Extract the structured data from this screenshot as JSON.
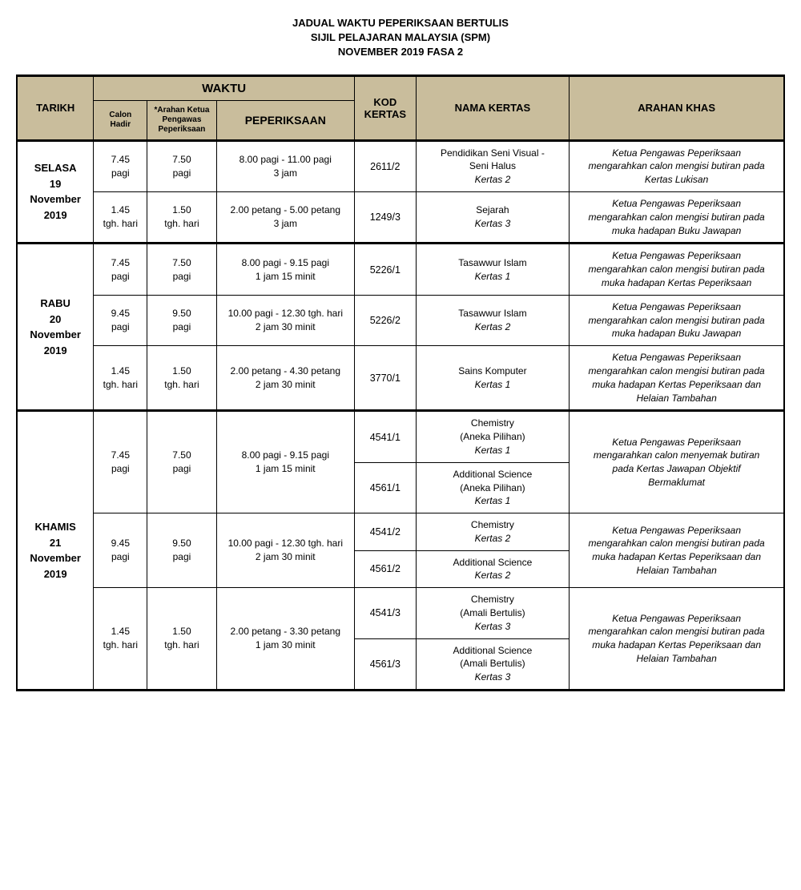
{
  "colors": {
    "header_bg": "#c9bd9c",
    "border": "#000000",
    "bg": "#ffffff"
  },
  "title": {
    "line1": "JADUAL WAKTU PEPERIKSAAN BERTULIS",
    "line2": "SIJIL PELAJARAN MALAYSIA (SPM)",
    "line3": "NOVEMBER 2019 FASA 2"
  },
  "headers": {
    "tarikh": "TARIKH",
    "waktu": "WAKTU",
    "calon_l1": "Calon",
    "calon_l2": "Hadir",
    "arahan_l1": "*Arahan Ketua",
    "arahan_l2": "Pengawas",
    "arahan_l3": "Peperiksaan",
    "peperiksaan": "PEPERIKSAAN",
    "kod": "KOD",
    "kertas": "KERTAS",
    "nama": "NAMA KERTAS",
    "khas": "ARAHAN KHAS"
  },
  "d1": {
    "day": "SELASA",
    "num": "19",
    "month": "November",
    "year": "2019",
    "r1": {
      "calon_t": "7.45",
      "calon_p": "pagi",
      "arah_t": "7.50",
      "arah_p": "pagi",
      "pep_l1": "8.00 pagi - 11.00 pagi",
      "pep_l2": "3 jam",
      "kod": "2611/2",
      "nama_l1": "Pendidikan Seni Visual -",
      "nama_l2": "Seni Halus",
      "nama_k": "Kertas 2",
      "khas_l1": "Ketua Pengawas Peperiksaan",
      "khas_l2": "mengarahkan calon mengisi butiran pada",
      "khas_l3": "Kertas Lukisan"
    },
    "r2": {
      "calon_t": "1.45",
      "calon_p": "tgh. hari",
      "arah_t": "1.50",
      "arah_p": "tgh. hari",
      "pep_l1": "2.00 petang - 5.00 petang",
      "pep_l2": "3 jam",
      "kod": "1249/3",
      "nama_l1": "Sejarah",
      "nama_k": "Kertas 3",
      "khas_l1": "Ketua Pengawas Peperiksaan",
      "khas_l2": "mengarahkan calon mengisi butiran pada",
      "khas_l3": "muka hadapan Buku Jawapan"
    }
  },
  "d2": {
    "day": "RABU",
    "num": "20",
    "month": "November",
    "year": "2019",
    "r1": {
      "calon_t": "7.45",
      "calon_p": "pagi",
      "arah_t": "7.50",
      "arah_p": "pagi",
      "pep_l1": "8.00 pagi - 9.15 pagi",
      "pep_l2": "1 jam 15 minit",
      "kod": "5226/1",
      "nama_l1": "Tasawwur Islam",
      "nama_k": "Kertas 1",
      "khas_l1": "Ketua Pengawas Peperiksaan",
      "khas_l2": "mengarahkan calon mengisi butiran pada",
      "khas_l3": "muka hadapan Kertas Peperiksaan"
    },
    "r2": {
      "calon_t": "9.45",
      "calon_p": "pagi",
      "arah_t": "9.50",
      "arah_p": "pagi",
      "pep_l1": "10.00 pagi - 12.30 tgh. hari",
      "pep_l2": "2 jam 30 minit",
      "kod": "5226/2",
      "nama_l1": "Tasawwur Islam",
      "nama_k": "Kertas 2",
      "khas_l1": "Ketua Pengawas Peperiksaan",
      "khas_l2": "mengarahkan calon mengisi butiran pada",
      "khas_l3": "muka hadapan Buku Jawapan"
    },
    "r3": {
      "calon_t": "1.45",
      "calon_p": "tgh. hari",
      "arah_t": "1.50",
      "arah_p": "tgh. hari",
      "pep_l1": "2.00 petang - 4.30 petang",
      "pep_l2": "2 jam 30 minit",
      "kod": "3770/1",
      "nama_l1": "Sains Komputer",
      "nama_k": "Kertas 1",
      "khas_l1": "Ketua Pengawas Peperiksaan",
      "khas_l2": "mengarahkan calon mengisi butiran pada",
      "khas_l3": "muka hadapan Kertas Peperiksaan dan",
      "khas_l4": "Helaian Tambahan"
    }
  },
  "d3": {
    "day": "KHAMIS",
    "num": "21",
    "month": "November",
    "year": "2019",
    "s1": {
      "calon_t": "7.45",
      "calon_p": "pagi",
      "arah_t": "7.50",
      "arah_p": "pagi",
      "pep_l1": "8.00 pagi - 9.15 pagi",
      "pep_l2": "1 jam 15 minit",
      "a_kod": "4541/1",
      "a_nama_l1": "Chemistry",
      "a_nama_l2": "(Aneka Pilihan)",
      "a_nama_k": "Kertas 1",
      "b_kod": "4561/1",
      "b_nama_l1": "Additional Science",
      "b_nama_l2": "(Aneka Pilihan)",
      "b_nama_k": "Kertas 1",
      "khas_l1": "Ketua Pengawas Peperiksaan",
      "khas_l2": "mengarahkan calon menyemak butiran",
      "khas_l3": "pada Kertas Jawapan Objektif",
      "khas_l4": "Bermaklumat"
    },
    "s2": {
      "calon_t": "9.45",
      "calon_p": "pagi",
      "arah_t": "9.50",
      "arah_p": "pagi",
      "pep_l1": "10.00 pagi - 12.30 tgh. hari",
      "pep_l2": "2 jam 30 minit",
      "a_kod": "4541/2",
      "a_nama_l1": "Chemistry",
      "a_nama_k": "Kertas 2",
      "b_kod": "4561/2",
      "b_nama_l1": "Additional Science",
      "b_nama_k": "Kertas 2",
      "khas_l1": "Ketua Pengawas Peperiksaan",
      "khas_l2": "mengarahkan calon mengisi butiran pada",
      "khas_l3": "muka hadapan Kertas Peperiksaan dan",
      "khas_l4": "Helaian Tambahan"
    },
    "s3": {
      "calon_t": "1.45",
      "calon_p": "tgh. hari",
      "arah_t": "1.50",
      "arah_p": "tgh. hari",
      "pep_l1": "2.00 petang - 3.30 petang",
      "pep_l2": "1 jam 30 minit",
      "a_kod": "4541/3",
      "a_nama_l1": "Chemistry",
      "a_nama_l2": "(Amali Bertulis)",
      "a_nama_k": "Kertas 3",
      "b_kod": "4561/3",
      "b_nama_l1": "Additional Science",
      "b_nama_l2": "(Amali Bertulis)",
      "b_nama_k": "Kertas 3",
      "khas_l1": "Ketua Pengawas Peperiksaan",
      "khas_l2": "mengarahkan calon mengisi butiran pada",
      "khas_l3": "muka hadapan Kertas Peperiksaan dan",
      "khas_l4": "Helaian Tambahan"
    }
  }
}
